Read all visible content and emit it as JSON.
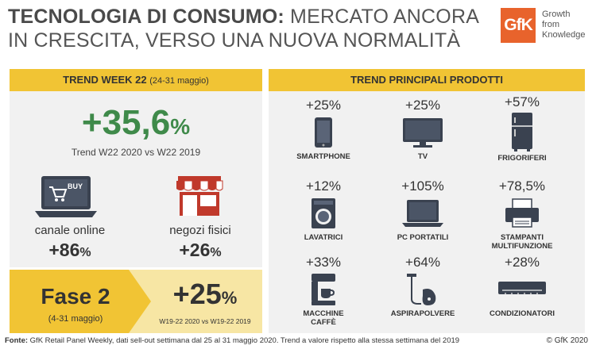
{
  "header": {
    "title_bold": "TECNOLOGIA DI CONSUMO:",
    "title_rest_line1": " MERCATO ANCORA",
    "title_line2": "IN CRESCITA, VERSO UNA NUOVA NORMALITÀ",
    "logo_text": "GfK",
    "tagline": [
      "Growth",
      "from",
      "Knowledge"
    ],
    "accent_color": "#f1c434",
    "brand_color": "#e8632c"
  },
  "trend_week": {
    "heading": "TREND WEEK 22",
    "heading_sub": "(24-31 maggio)",
    "value": "+35,6",
    "value_unit": "%",
    "subtitle": "Trend W22 2020 vs W22 2019",
    "value_color": "#3f8a4a",
    "buy_label": "BUY",
    "online_label": "canale online",
    "online_value": "+86",
    "online_unit": "%",
    "stores_label": "negozi fisici",
    "stores_value": "+26",
    "stores_unit": "%"
  },
  "fase2": {
    "title": "Fase 2",
    "dates": "(4-31 maggio)",
    "value": "+25",
    "unit": "%",
    "note": "W19-22 2020 vs W19-22 2019"
  },
  "products": {
    "heading": "TREND PRINCIPALI PRODOTTI",
    "items": [
      {
        "value": "+25%",
        "label": "SMARTPHONE",
        "icon": "smartphone-icon"
      },
      {
        "value": "+25%",
        "label": "TV",
        "icon": "tv-icon"
      },
      {
        "value": "+57%",
        "label": "FRIGORIFERI",
        "icon": "fridge-icon"
      },
      {
        "value": "+12%",
        "label": "LAVATRICI",
        "icon": "washing-machine-icon"
      },
      {
        "value": "+105%",
        "label": "PC PORTATILI",
        "icon": "laptop-icon"
      },
      {
        "value": "+78,5%",
        "label": "STAMPANTI\nMULTIFUNZIONE",
        "icon": "printer-icon"
      },
      {
        "value": "+33%",
        "label": "MACCHINE\nCAFFÈ",
        "icon": "coffee-machine-icon"
      },
      {
        "value": "+64%",
        "label": "ASPIRAPOLVERE",
        "icon": "vacuum-icon"
      },
      {
        "value": "+28%",
        "label": "CONDIZIONATORI",
        "icon": "air-conditioner-icon"
      }
    ]
  },
  "footer": {
    "source_label": "Fonte:",
    "source_text": " GfK Retail Panel Weekly, dati sell-out settimana dal 25 al 31 maggio 2020. Trend a valore rispetto alla stessa settimana del 2019",
    "copyright": "© GfK 2020"
  }
}
